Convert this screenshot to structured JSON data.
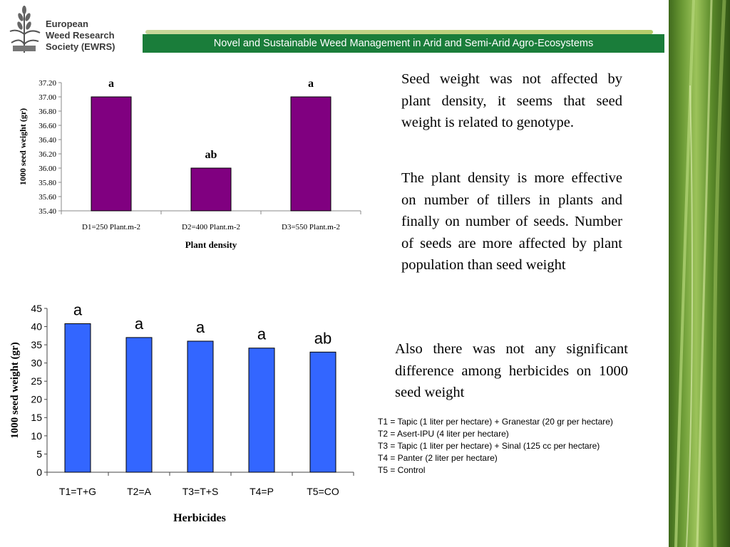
{
  "header": {
    "org_line1": "European",
    "org_line2": "Weed Research",
    "org_line3": "Society (EWRS)",
    "banner": "Novel and Sustainable Weed Management in Arid  and Semi-Arid Agro-Ecosystems"
  },
  "colors": {
    "banner_green": "#1a7d3a",
    "bar_purple": "#800080",
    "bar_blue": "#3366ff"
  },
  "text": {
    "para1": "Seed weight was not affected by plant density, it seems that seed weight is related to genotype.",
    "para2": "The plant density is more effective on number of tillers in plants and finally on number of seeds. Number of seeds are more affected by plant population than seed weight",
    "para3": "Also there was not any significant difference among herbicides on 1000 seed weight"
  },
  "legend": [
    "T1 = Tapic (1 liter per hectare) + Granestar (20 gr per hectare)",
    "T2 = Asert-IPU (4 liter per hectare)",
    "T3 = Tapic (1 liter per hectare) + Sinal (125 cc per hectare)",
    "T4 = Panter (2 liter per hectare)",
    "T5 = Control"
  ],
  "chart_data": [
    {
      "type": "bar",
      "categories": [
        "D1=250 Plant.m-2",
        "D2=400 Plant.m-2",
        "D3=550 Plant.m-2"
      ],
      "values": [
        37.0,
        36.0,
        37.0
      ],
      "data_labels": [
        "a",
        "ab",
        "a"
      ],
      "xlabel": "Plant density",
      "ylabel": "1000 seed weight (gr)",
      "ylim": [
        35.4,
        37.2
      ],
      "yticks": [
        "35.40",
        "35.60",
        "35.80",
        "36.00",
        "36.20",
        "36.40",
        "36.60",
        "36.80",
        "37.00",
        "37.20"
      ],
      "grid": false,
      "color": "#800080"
    },
    {
      "type": "bar",
      "categories": [
        "T1=T+G",
        "T2=A",
        "T3=T+S",
        "T4=P",
        "T5=CO"
      ],
      "values": [
        40.8,
        37.0,
        36.0,
        34.1,
        33.0
      ],
      "data_labels": [
        "a",
        "a",
        "a",
        "a",
        "ab"
      ],
      "xlabel": "Herbicides",
      "ylabel": "1000 seed weight (gr)",
      "ylim": [
        0,
        45
      ],
      "yticks": [
        "0",
        "5",
        "10",
        "15",
        "20",
        "25",
        "30",
        "35",
        "40",
        "45"
      ],
      "grid": false,
      "color": "#3366ff"
    }
  ]
}
